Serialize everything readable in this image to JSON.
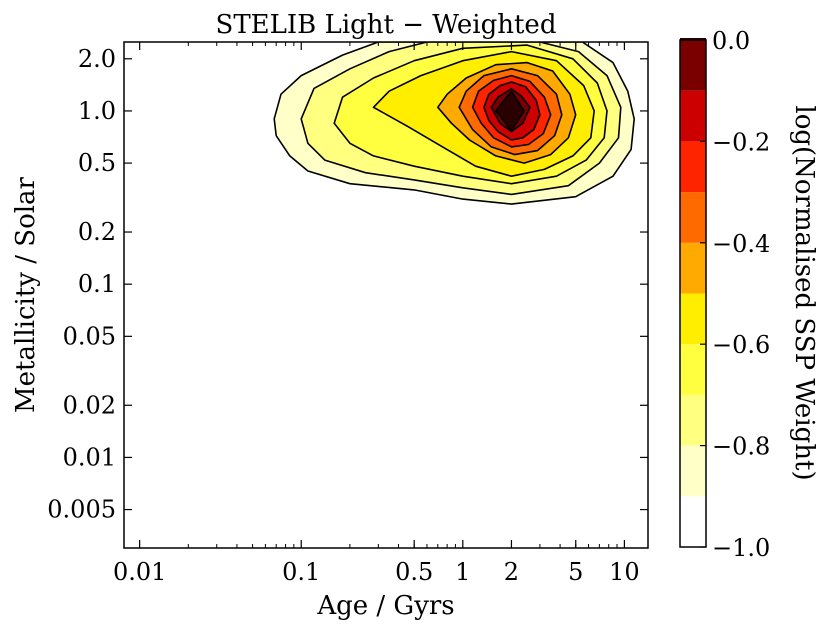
{
  "chart_data": {
    "type": "contour",
    "title": "STELIB Light − Weighted",
    "xlabel": "Age / Gyrs",
    "ylabel": "Metallicity / Solar",
    "xscale": "log",
    "yscale": "log",
    "xlim": [
      0.008,
      14
    ],
    "ylim": [
      0.003,
      2.5
    ],
    "xticks": [
      {
        "value": 0.01,
        "label": "0.01"
      },
      {
        "value": 0.1,
        "label": "0.1"
      },
      {
        "value": 0.5,
        "label": "0.5"
      },
      {
        "value": 1,
        "label": "1"
      },
      {
        "value": 2,
        "label": "2"
      },
      {
        "value": 5,
        "label": "5"
      },
      {
        "value": 10,
        "label": "10"
      }
    ],
    "yticks": [
      {
        "value": 2.0,
        "label": "2.0"
      },
      {
        "value": 1.0,
        "label": "1.0"
      },
      {
        "value": 0.5,
        "label": "0.5"
      },
      {
        "value": 0.2,
        "label": "0.2"
      },
      {
        "value": 0.1,
        "label": "0.1"
      },
      {
        "value": 0.05,
        "label": "0.05"
      },
      {
        "value": 0.02,
        "label": "0.02"
      },
      {
        "value": 0.01,
        "label": "0.01"
      },
      {
        "value": 0.005,
        "label": "0.005"
      }
    ],
    "colorbar": {
      "label": "log(Normalised SSP Weight)",
      "range": [
        -1.0,
        0.0
      ],
      "ticks": [
        {
          "value": 0.0,
          "label": "0.0"
        },
        {
          "value": -0.2,
          "label": "−0.2"
        },
        {
          "value": -0.4,
          "label": "−0.4"
        },
        {
          "value": -0.6,
          "label": "−0.6"
        },
        {
          "value": -0.8,
          "label": "−0.8"
        },
        {
          "value": -1.0,
          "label": "−1.0"
        }
      ],
      "levels": [
        -1.0,
        -0.9,
        -0.8,
        -0.7,
        -0.6,
        -0.5,
        -0.4,
        -0.3,
        -0.2,
        -0.1,
        0.0
      ],
      "colors": [
        "#ffffff",
        "#ffffc8",
        "#ffff80",
        "#ffff40",
        "#ffee00",
        "#ffaa00",
        "#ff6a00",
        "#ff2400",
        "#cc0000",
        "#7a0000",
        "#2a0000"
      ]
    },
    "peak": {
      "age": 2,
      "metallicity": 1.0,
      "value": 0.0
    },
    "contours": [
      {
        "level": -0.9,
        "points": [
          [
            0.068,
            0.9
          ],
          [
            0.075,
            1.25
          ],
          [
            0.1,
            1.6
          ],
          [
            0.18,
            2.1
          ],
          [
            0.3,
            2.5
          ],
          [
            3,
            2.5
          ],
          [
            5.5,
            2.5
          ],
          [
            8.5,
            1.9
          ],
          [
            10.5,
            1.3
          ],
          [
            11.5,
            0.9
          ],
          [
            11,
            0.6
          ],
          [
            8.5,
            0.42
          ],
          [
            5,
            0.32
          ],
          [
            2,
            0.29
          ],
          [
            1,
            0.31
          ],
          [
            0.5,
            0.35
          ],
          [
            0.2,
            0.38
          ],
          [
            0.11,
            0.45
          ],
          [
            0.085,
            0.55
          ],
          [
            0.07,
            0.72
          ]
        ]
      },
      {
        "level": -0.8,
        "points": [
          [
            0.1,
            0.9
          ],
          [
            0.12,
            1.35
          ],
          [
            0.2,
            1.75
          ],
          [
            0.35,
            2.2
          ],
          [
            0.6,
            2.5
          ],
          [
            3,
            2.5
          ],
          [
            5.2,
            2.2
          ],
          [
            7.8,
            1.6
          ],
          [
            9.5,
            1.05
          ],
          [
            9.2,
            0.7
          ],
          [
            7,
            0.5
          ],
          [
            4.5,
            0.37
          ],
          [
            2,
            0.33
          ],
          [
            1,
            0.36
          ],
          [
            0.5,
            0.4
          ],
          [
            0.25,
            0.44
          ],
          [
            0.14,
            0.52
          ],
          [
            0.11,
            0.65
          ]
        ]
      },
      {
        "level": -0.7,
        "points": [
          [
            0.16,
            0.85
          ],
          [
            0.18,
            1.2
          ],
          [
            0.28,
            1.55
          ],
          [
            0.5,
            1.95
          ],
          [
            1,
            2.3
          ],
          [
            2.5,
            2.4
          ],
          [
            4.8,
            2
          ],
          [
            6.8,
            1.45
          ],
          [
            7.8,
            1
          ],
          [
            7.5,
            0.7
          ],
          [
            5.8,
            0.52
          ],
          [
            3.8,
            0.42
          ],
          [
            2,
            0.38
          ],
          [
            1,
            0.42
          ],
          [
            0.5,
            0.48
          ],
          [
            0.28,
            0.55
          ],
          [
            0.2,
            0.65
          ]
        ]
      },
      {
        "level": -0.6,
        "points": [
          [
            0.28,
            1.05
          ],
          [
            0.35,
            1.3
          ],
          [
            0.55,
            1.6
          ],
          [
            1,
            1.95
          ],
          [
            2,
            2.2
          ],
          [
            3.8,
            1.95
          ],
          [
            5.6,
            1.4
          ],
          [
            6.5,
            1.0
          ],
          [
            6.2,
            0.7
          ],
          [
            4.8,
            0.55
          ],
          [
            3.2,
            0.46
          ],
          [
            2,
            0.42
          ],
          [
            1.2,
            0.48
          ],
          [
            0.75,
            0.62
          ],
          [
            0.45,
            0.82
          ]
        ]
      },
      {
        "level": -0.5,
        "points": [
          [
            0.7,
            1.05
          ],
          [
            0.8,
            1.25
          ],
          [
            1.05,
            1.55
          ],
          [
            1.6,
            1.85
          ],
          [
            2.5,
            1.9
          ],
          [
            3.6,
            1.7
          ],
          [
            4.6,
            1.25
          ],
          [
            5,
            0.95
          ],
          [
            4.5,
            0.7
          ],
          [
            3.5,
            0.56
          ],
          [
            2.4,
            0.5
          ],
          [
            1.6,
            0.55
          ],
          [
            1.1,
            0.68
          ],
          [
            0.85,
            0.85
          ]
        ]
      },
      {
        "level": -0.4,
        "points": [
          [
            0.95,
            1.05
          ],
          [
            1.05,
            1.3
          ],
          [
            1.35,
            1.6
          ],
          [
            2,
            1.75
          ],
          [
            2.9,
            1.6
          ],
          [
            3.8,
            1.25
          ],
          [
            4.1,
            0.95
          ],
          [
            3.7,
            0.72
          ],
          [
            2.9,
            0.59
          ],
          [
            2.1,
            0.56
          ],
          [
            1.5,
            0.62
          ],
          [
            1.15,
            0.78
          ]
        ]
      },
      {
        "level": -0.3,
        "points": [
          [
            1.15,
            1.05
          ],
          [
            1.25,
            1.3
          ],
          [
            1.55,
            1.5
          ],
          [
            2,
            1.6
          ],
          [
            2.6,
            1.48
          ],
          [
            3.2,
            1.2
          ],
          [
            3.5,
            0.95
          ],
          [
            3.15,
            0.74
          ],
          [
            2.55,
            0.64
          ],
          [
            2,
            0.62
          ],
          [
            1.55,
            0.7
          ],
          [
            1.3,
            0.85
          ]
        ]
      },
      {
        "level": -0.2,
        "points": [
          [
            1.35,
            1.05
          ],
          [
            1.45,
            1.25
          ],
          [
            1.7,
            1.4
          ],
          [
            2,
            1.47
          ],
          [
            2.45,
            1.38
          ],
          [
            2.85,
            1.15
          ],
          [
            3,
            0.95
          ],
          [
            2.75,
            0.78
          ],
          [
            2.35,
            0.7
          ],
          [
            2,
            0.68
          ],
          [
            1.65,
            0.76
          ],
          [
            1.45,
            0.88
          ]
        ]
      },
      {
        "level": -0.1,
        "points": [
          [
            1.5,
            1.05
          ],
          [
            1.65,
            1.2
          ],
          [
            2,
            1.34
          ],
          [
            2.3,
            1.22
          ],
          [
            2.6,
            1.05
          ],
          [
            2.35,
            0.85
          ],
          [
            2,
            0.76
          ],
          [
            1.7,
            0.85
          ]
        ]
      },
      {
        "level": 0.0,
        "points": [
          [
            1.6,
            1.0
          ],
          [
            2,
            1.3
          ],
          [
            2.4,
            1.0
          ],
          [
            2,
            0.77
          ]
        ]
      }
    ]
  }
}
